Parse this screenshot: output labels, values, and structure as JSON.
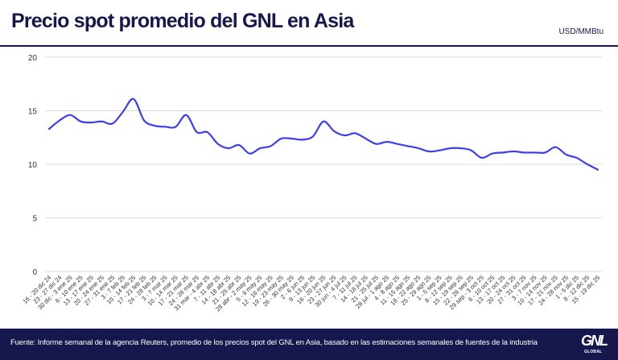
{
  "header": {
    "title": "Precio spot promedio del GNL en Asia",
    "unit": "USD/MMBtu"
  },
  "footer": {
    "source": "Fuente: Informe semanal de la agencia Reuters, promedio de los precios spot del GNL en Asia, basado en las estimaciones semanales de fuentes de la industria",
    "logo_text": "GNL",
    "logo_subtext": "GLOBAL"
  },
  "colors": {
    "navy": "#15174d",
    "line": "#3b3ff0",
    "grid": "#d9d9d9"
  },
  "chart_data": {
    "type": "line",
    "title": "Precio spot promedio del GNL en Asia",
    "xlabel": "",
    "ylabel": "",
    "unit": "USD/MMBtu",
    "ylim": [
      0,
      20
    ],
    "yticks": [
      0,
      5,
      10,
      15,
      20
    ],
    "grid": true,
    "categories": [
      "16 - 20 dic 24",
      "23 - 27 dic 24",
      "30 dic - 3 ene 25",
      "6 - 10 ene 25",
      "13 - 17 ene 25",
      "20 - 24 ene 25",
      "27 - 31 ene 25",
      "3 - 7 feb 25",
      "10 - 14 feb 25",
      "17 - 21 feb 25",
      "24 - 28 feb 25",
      "3 - 7 mar 25",
      "10 - 14 mar 25",
      "17 - 21 mar 25",
      "24 - 28 mar 25",
      "31 mar - 4 abr 25",
      "7 - 11 abr 25",
      "14 - 18 abr 25",
      "21 - 25 abr 25",
      "28 abr - 2 may 25",
      "5 - 9 may 25",
      "12 - 16 may 25",
      "19 - 23 may 25",
      "26 - 30 may 25",
      "2 - 6 jun 25",
      "9 - 13 jun 25",
      "16 - 20 jun 25",
      "23 - 27 jun 25",
      "30 jun - 4 jul 25",
      "7 - 11 jul 25",
      "14 - 18 jul 25",
      "21 - 25 jul 25",
      "28 jul - 1 ago 25",
      "4 - 8 ago 25",
      "11 - 15 ago 25",
      "18 - 22 ago 25",
      "25 - 29 ago 25",
      "1 - 5 sep 25",
      "8 - 12 sep 25",
      "15 - 19 sep 25",
      "22 - 26 sep 25",
      "29 sep - 3 oct 25",
      "6 - 10 oct 25",
      "13 - 17 oct 25",
      "20 - 24 oct 25",
      "27 - 31 oct 25",
      "3 - 7 nov 25",
      "10 - 14 nov 25",
      "17 - 21 nov 25",
      "24 - 28 nov 25",
      "1 - 5 dic 25",
      "8 - 12 dic 25",
      "15 - 19 dic 25"
    ],
    "series": [
      {
        "values": [
          13.3,
          14.1,
          14.6,
          14.0,
          13.9,
          14.0,
          13.8,
          14.9,
          16.1,
          14.1,
          13.6,
          13.5,
          13.5,
          14.6,
          13.0,
          13.0,
          11.9,
          11.5,
          11.8,
          11.0,
          11.5,
          11.7,
          12.4,
          12.4,
          12.3,
          12.6,
          14.0,
          13.1,
          12.7,
          12.9,
          12.4,
          11.9,
          12.1,
          11.9,
          11.7,
          11.5,
          11.2,
          11.3,
          11.5,
          11.5,
          11.3,
          10.6,
          11.0,
          11.1,
          11.2,
          11.1,
          11.1,
          11.1,
          11.6,
          10.9,
          10.6,
          10.0,
          9.5
        ]
      }
    ]
  }
}
